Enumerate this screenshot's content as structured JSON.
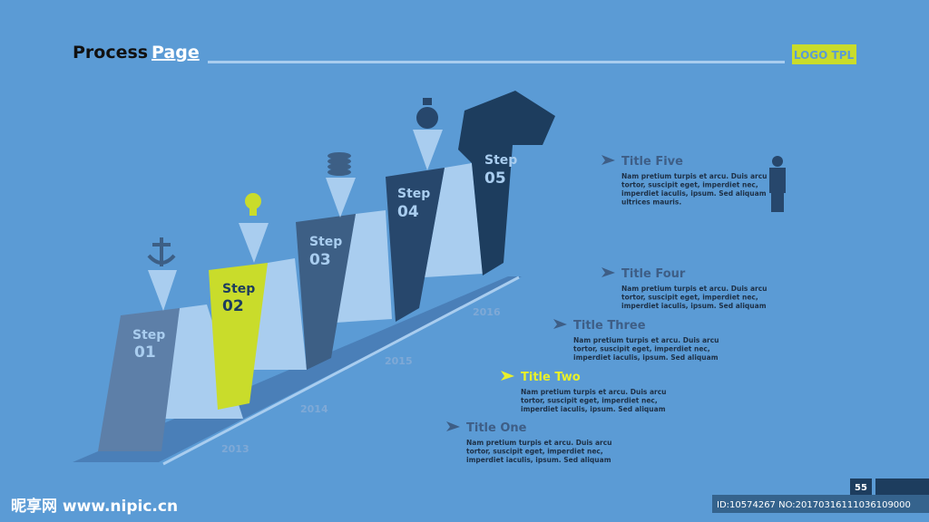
{
  "header": {
    "title": "Process",
    "title_highlight": "Page",
    "logo": "LOGO TPL"
  },
  "steps": [
    {
      "label": "Step",
      "number": "01"
    },
    {
      "label": "Step",
      "number": "02"
    },
    {
      "label": "Step",
      "number": "03"
    },
    {
      "label": "Step",
      "number": "04"
    },
    {
      "label": "Step",
      "number": "05"
    }
  ],
  "years": [
    "2013",
    "2014",
    "2015",
    "2016"
  ],
  "items": [
    {
      "title": "Title One",
      "text": [
        "Nam pretium turpis et arcu. Duis arcu",
        "tortor, suscipit eget, imperdiet nec,",
        "imperdiet iaculis, ipsum. Sed aliquam"
      ]
    },
    {
      "title": "Title Two",
      "text": [
        "Nam pretium turpis et arcu. Duis arcu",
        "tortor, suscipit eget, imperdiet nec,",
        "imperdiet iaculis, ipsum. Sed aliquam"
      ]
    },
    {
      "title": "Title Three",
      "text": [
        "Nam pretium turpis et arcu. Duis arcu",
        "tortor, suscipit eget, imperdiet nec,",
        "imperdiet iaculis, ipsum. Sed aliquam"
      ]
    },
    {
      "title": "Title Four",
      "text": [
        "Nam pretium turpis et arcu. Duis arcu",
        "tortor, suscipit eget, imperdiet nec,",
        "imperdiet iaculis, ipsum. Sed aliquam"
      ]
    },
    {
      "title": "Title Five",
      "text": [
        "Nam pretium turpis et arcu. Duis arcu",
        "tortor, suscipit eget, imperdiet nec,",
        "imperdiet iaculis, ipsum. Sed aliquam",
        "ultrices mauris."
      ]
    }
  ],
  "page_number": "55",
  "watermark": {
    "site": "昵享网 www.nipic.cn",
    "id": "ID:10574267 NO:20170316111036109000"
  }
}
